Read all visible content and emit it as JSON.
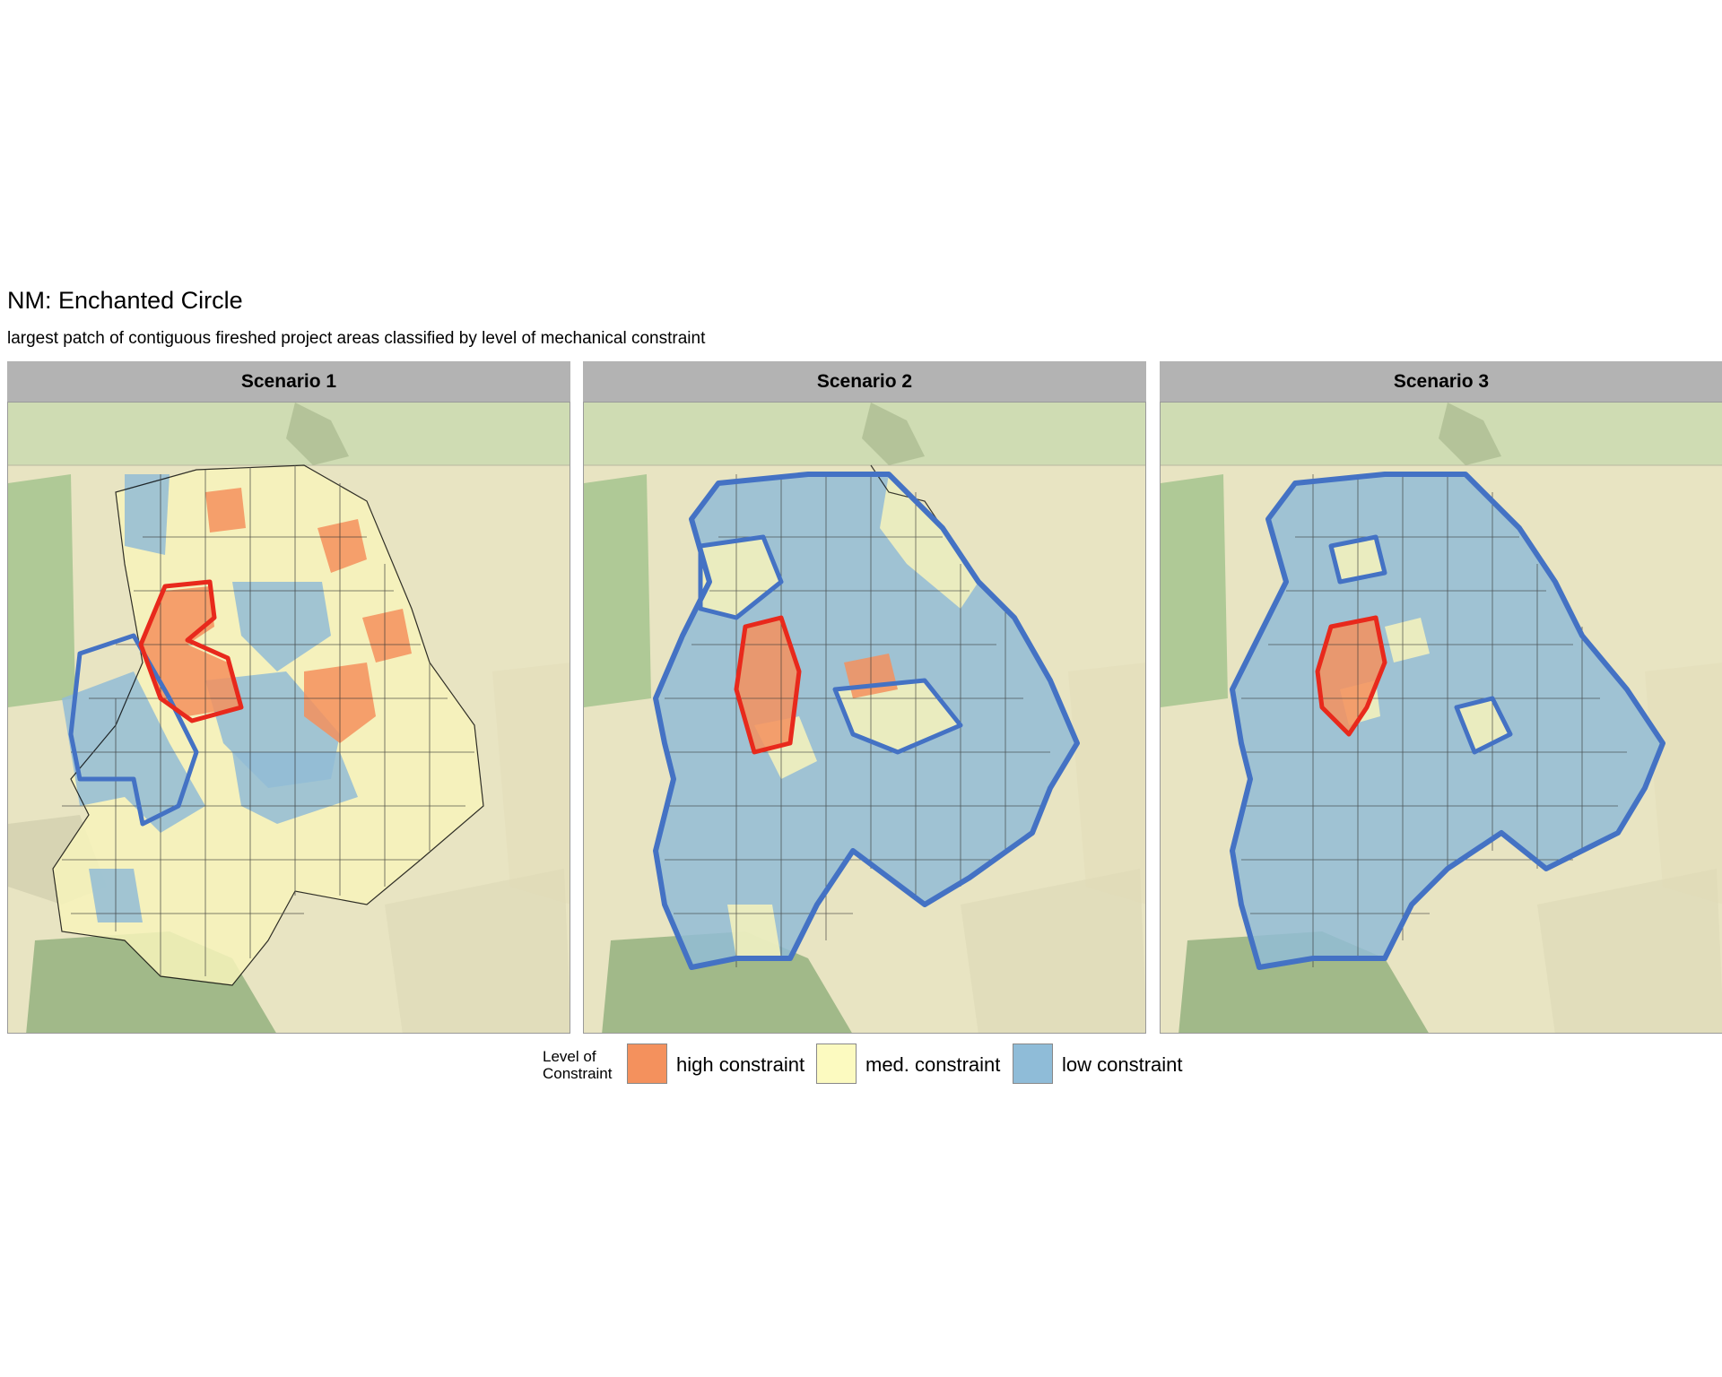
{
  "title": "NM: Enchanted Circle",
  "subtitle": "largest patch of contiguous fireshed project areas classified by level of mechanical constraint",
  "panels": [
    {
      "label": "Scenario 1"
    },
    {
      "label": "Scenario 2"
    },
    {
      "label": "Scenario 3"
    }
  ],
  "legend": {
    "title_line1": "Level of",
    "title_line2": "Constraint",
    "items": [
      {
        "label": "high constraint",
        "color": "#f4915d"
      },
      {
        "label": "med. constraint",
        "color": "#fcfac0"
      },
      {
        "label": "low constraint",
        "color": "#8fbcd8"
      }
    ]
  },
  "colors": {
    "patch_outline": "#4472c4",
    "high_outline": "#e8291c",
    "strip": "#b3b3b3",
    "basemap": "#e8e4c2",
    "forest": "#a9c591"
  }
}
